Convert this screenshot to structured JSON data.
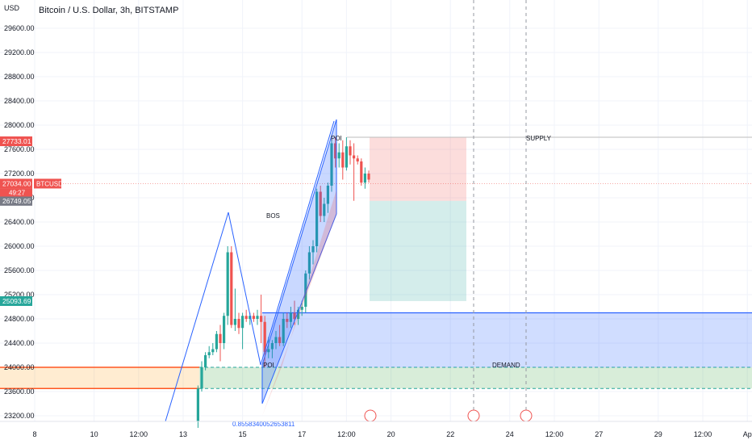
{
  "header": {
    "title": "Bitcoin / U.S. Dollar, 3h, BITSTAMP",
    "currency": "USD"
  },
  "chart_data": {
    "type": "candlestick",
    "ylim": [
      23000,
      30000
    ],
    "yticks": [
      23200,
      23600,
      24000,
      24400,
      24800,
      25200,
      25600,
      26000,
      26400,
      26800,
      27200,
      27600,
      28000,
      28400,
      28800,
      29200,
      29600
    ],
    "ytick_labels": [
      "23200.00",
      "23600.00",
      "24000.00",
      "24400.00",
      "24800.00",
      "25200.00",
      "25600.00",
      "26000.00",
      "26400.00",
      "26800.00",
      "27200.00",
      "27600.00",
      "28000.00",
      "28400.00",
      "28800.00",
      "29200.00",
      "29600.00"
    ],
    "xticks": [
      {
        "label": "8",
        "t": 0
      },
      {
        "label": "10",
        "t": 16
      },
      {
        "label": "12:00",
        "t": 28
      },
      {
        "label": "13",
        "t": 40
      },
      {
        "label": "15",
        "t": 56
      },
      {
        "label": "17",
        "t": 72
      },
      {
        "label": "12:00",
        "t": 84
      },
      {
        "label": "20",
        "t": 96
      },
      {
        "label": "22",
        "t": 112
      },
      {
        "label": "24",
        "t": 128
      },
      {
        "label": "12:00",
        "t": 140
      },
      {
        "label": "27",
        "t": 152
      },
      {
        "label": "29",
        "t": 168
      },
      {
        "label": "12:00",
        "t": 180
      },
      {
        "label": "Ap",
        "t": 192
      }
    ],
    "candles": [
      {
        "t": 44,
        "o": 23100,
        "h": 23700,
        "l": 23000,
        "c": 23650
      },
      {
        "t": 45,
        "o": 23650,
        "h": 24100,
        "l": 23600,
        "c": 24000
      },
      {
        "t": 46,
        "o": 24000,
        "h": 24250,
        "l": 23950,
        "c": 24200
      },
      {
        "t": 47,
        "o": 24200,
        "h": 24350,
        "l": 24150,
        "c": 24250
      },
      {
        "t": 48,
        "o": 24250,
        "h": 24400,
        "l": 24200,
        "c": 24300
      },
      {
        "t": 49,
        "o": 24300,
        "h": 24600,
        "l": 24250,
        "c": 24550
      },
      {
        "t": 50,
        "o": 24550,
        "h": 24700,
        "l": 24100,
        "c": 24400
      },
      {
        "t": 51,
        "o": 24400,
        "h": 24900,
        "l": 24300,
        "c": 24850
      },
      {
        "t": 52,
        "o": 24850,
        "h": 26000,
        "l": 24700,
        "c": 25900
      },
      {
        "t": 53,
        "o": 25900,
        "h": 26000,
        "l": 24650,
        "c": 24700
      },
      {
        "t": 54,
        "o": 24700,
        "h": 25300,
        "l": 24600,
        "c": 24800
      },
      {
        "t": 55,
        "o": 24800,
        "h": 24900,
        "l": 24550,
        "c": 24650
      },
      {
        "t": 56,
        "o": 24650,
        "h": 24900,
        "l": 24300,
        "c": 24850
      },
      {
        "t": 57,
        "o": 24850,
        "h": 24950,
        "l": 24750,
        "c": 24800
      },
      {
        "t": 58,
        "o": 24800,
        "h": 24900,
        "l": 24700,
        "c": 24850
      },
      {
        "t": 59,
        "o": 24850,
        "h": 24900,
        "l": 24750,
        "c": 24800
      },
      {
        "t": 60,
        "o": 24800,
        "h": 24950,
        "l": 24700,
        "c": 24850
      },
      {
        "t": 61,
        "o": 24850,
        "h": 25200,
        "l": 24400,
        "c": 24750
      },
      {
        "t": 62,
        "o": 24750,
        "h": 24850,
        "l": 24000,
        "c": 24250
      },
      {
        "t": 63,
        "o": 24250,
        "h": 24500,
        "l": 24150,
        "c": 24300
      },
      {
        "t": 64,
        "o": 24300,
        "h": 24450,
        "l": 24150,
        "c": 24400
      },
      {
        "t": 65,
        "o": 24400,
        "h": 24600,
        "l": 24300,
        "c": 24500
      },
      {
        "t": 66,
        "o": 24500,
        "h": 24700,
        "l": 24350,
        "c": 24400
      },
      {
        "t": 67,
        "o": 24400,
        "h": 24900,
        "l": 24350,
        "c": 24800
      },
      {
        "t": 68,
        "o": 24800,
        "h": 24900,
        "l": 24650,
        "c": 24750
      },
      {
        "t": 69,
        "o": 24750,
        "h": 25000,
        "l": 24650,
        "c": 24900
      },
      {
        "t": 70,
        "o": 24900,
        "h": 25100,
        "l": 24700,
        "c": 24800
      },
      {
        "t": 71,
        "o": 24800,
        "h": 25000,
        "l": 24700,
        "c": 24950
      },
      {
        "t": 72,
        "o": 24950,
        "h": 25100,
        "l": 24850,
        "c": 25000
      },
      {
        "t": 73,
        "o": 25000,
        "h": 25600,
        "l": 24900,
        "c": 25550
      },
      {
        "t": 74,
        "o": 25550,
        "h": 26000,
        "l": 25450,
        "c": 25900
      },
      {
        "t": 75,
        "o": 25900,
        "h": 26100,
        "l": 25700,
        "c": 26000
      },
      {
        "t": 76,
        "o": 26000,
        "h": 26950,
        "l": 25900,
        "c": 26900
      },
      {
        "t": 77,
        "o": 26900,
        "h": 27000,
        "l": 26400,
        "c": 26500
      },
      {
        "t": 78,
        "o": 26500,
        "h": 26800,
        "l": 26400,
        "c": 26700
      },
      {
        "t": 79,
        "o": 26700,
        "h": 27050,
        "l": 26550,
        "c": 27000
      },
      {
        "t": 80,
        "o": 27000,
        "h": 27750,
        "l": 26900,
        "c": 27700
      },
      {
        "t": 81,
        "o": 27700,
        "h": 27800,
        "l": 27300,
        "c": 27450
      },
      {
        "t": 82,
        "o": 27450,
        "h": 27700,
        "l": 27300,
        "c": 27550
      },
      {
        "t": 83,
        "o": 27550,
        "h": 27750,
        "l": 27100,
        "c": 27300
      },
      {
        "t": 84,
        "o": 27300,
        "h": 27800,
        "l": 27250,
        "c": 27650
      },
      {
        "t": 85,
        "o": 27650,
        "h": 27750,
        "l": 27350,
        "c": 27500
      },
      {
        "t": 86,
        "o": 27500,
        "h": 27700,
        "l": 26750,
        "c": 27450
      },
      {
        "t": 87,
        "o": 27450,
        "h": 27500,
        "l": 27350,
        "c": 27400
      },
      {
        "t": 88,
        "o": 27400,
        "h": 27450,
        "l": 27000,
        "c": 27050
      },
      {
        "t": 89,
        "o": 27050,
        "h": 27300,
        "l": 26950,
        "c": 27200
      },
      {
        "t": 90,
        "o": 27200,
        "h": 27250,
        "l": 27050,
        "c": 27100
      }
    ],
    "price_tags": [
      {
        "value": 27733.01,
        "text": "27733.01",
        "color": "#ef5350"
      },
      {
        "value": 27034,
        "text": "27034.00",
        "color": "#ef5350"
      },
      {
        "value": 26749.05,
        "text": "26749.05",
        "color": "#787b86"
      },
      {
        "value": 25093.69,
        "text": "25093.69",
        "color": "#26a69a"
      }
    ],
    "symbol_badge": {
      "text": "BTCUSD",
      "timer": "49:27"
    },
    "annotations": [
      {
        "text": "BOS"
      },
      {
        "text": "POI"
      },
      {
        "text": "POI"
      },
      {
        "text": "SUPPLY"
      },
      {
        "text": "DEMAND"
      },
      {
        "text": "0.8558340052653811"
      }
    ],
    "colors": {
      "up": "#26a69a",
      "down": "#ef5350",
      "blue": "#2962ff",
      "orange": "#ff5722",
      "grid": "#f0f3fa"
    }
  }
}
